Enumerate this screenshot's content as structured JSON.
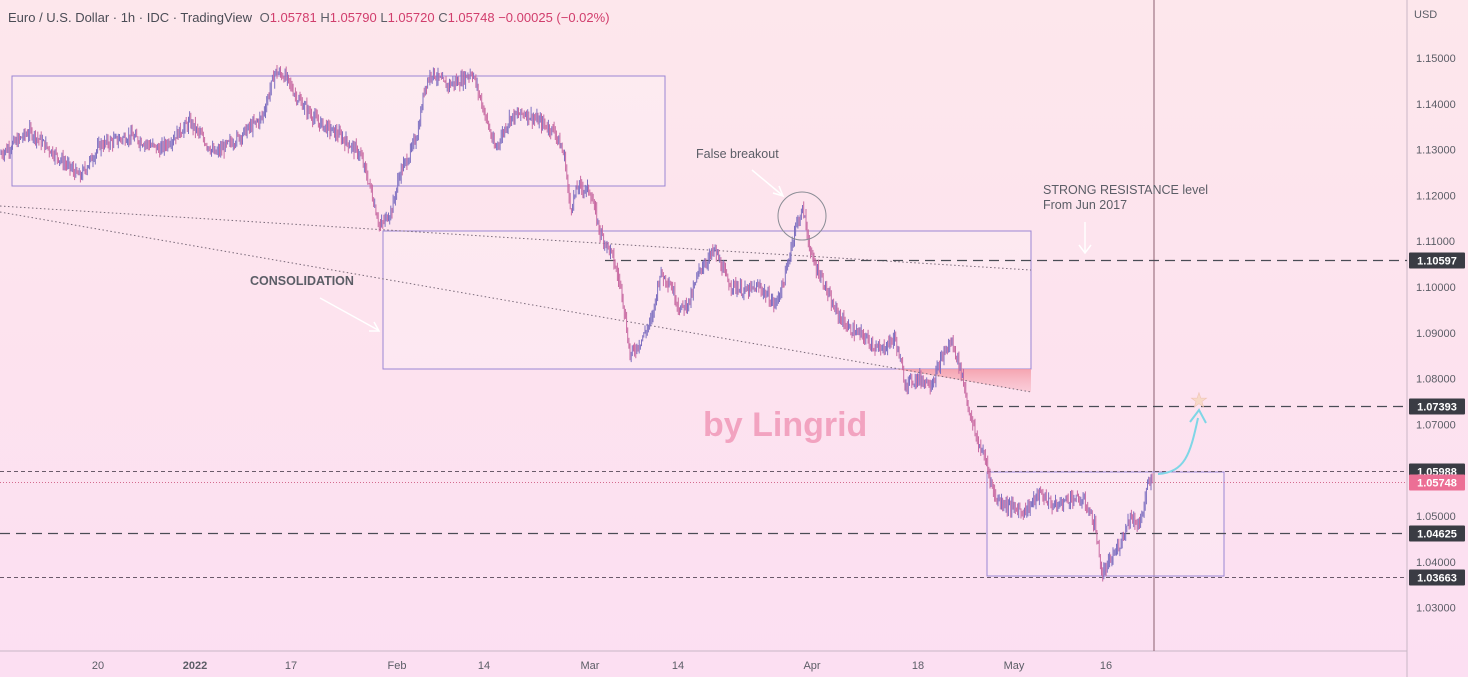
{
  "header": {
    "symbol": "Euro / U.S. Dollar · 1h · IDC · TradingView",
    "o_label": "O",
    "o": "1.05781",
    "h_label": "H",
    "h": "1.05790",
    "l_label": "L",
    "l": "1.05720",
    "c_label": "C",
    "c": "1.05748",
    "change": "−0.00025 (−0.02%)"
  },
  "currency": "USD",
  "watermark": "by Lingrid",
  "annotations": {
    "false_breakout": "False breakout",
    "consolidation": "CONSOLIDATION",
    "resistance_line1": "STRONG RESISTANCE level",
    "resistance_line2": "From Jun 2017"
  },
  "colors": {
    "candle": "#7e6fc0",
    "candle_alt": "#c86aa2",
    "box_stroke": "#9a86d4",
    "level_dash": "#4a4c55",
    "price_tag_dark": "#3a3c44",
    "price_tag_current": "#ec6f95",
    "trend_arrow": "#7fd6e6",
    "warning_zone": "#f4a3ad"
  },
  "chart_data": {
    "type": "candlestick",
    "title": "Euro / U.S. Dollar · 1h · IDC · TradingView",
    "ylabel": "USD",
    "ylim": [
      1.0195,
      1.1585
    ],
    "y_ticks": [
      1.15,
      1.14,
      1.13,
      1.12,
      1.11,
      1.1,
      1.09,
      1.08,
      1.07,
      1.05,
      1.04,
      1.03
    ],
    "y_tick_labels": [
      "1.15000",
      "1.14000",
      "1.13000",
      "1.12000",
      "1.11000",
      "1.10000",
      "1.09000",
      "1.08000",
      "1.07000",
      "1.05000",
      "1.04000",
      "1.03000"
    ],
    "x_tick_labels": [
      "20",
      "2022",
      "17",
      "Feb",
      "14",
      "Mar",
      "14",
      "Apr",
      "18",
      "May",
      "16"
    ],
    "x_tick_bold": [
      false,
      true,
      false,
      false,
      false,
      false,
      false,
      false,
      false,
      false,
      false
    ],
    "price_levels": [
      {
        "value": 1.10597,
        "label": "1.10597",
        "style": "dashed-long",
        "kind": "level"
      },
      {
        "value": 1.07393,
        "label": "1.07393",
        "style": "dashed-long",
        "kind": "level"
      },
      {
        "value": 1.05988,
        "label": "1.05988",
        "style": "dashed-short",
        "kind": "level"
      },
      {
        "value": 1.05748,
        "label": "1.05748",
        "style": "dotted",
        "kind": "current"
      },
      {
        "value": 1.04625,
        "label": "1.04625",
        "style": "dashed-long",
        "kind": "level"
      },
      {
        "value": 1.03663,
        "label": "1.03663",
        "style": "dashed-short",
        "kind": "level"
      }
    ],
    "path": [
      [
        0,
        1.129
      ],
      [
        30,
        1.134
      ],
      [
        60,
        1.128
      ],
      [
        80,
        1.124
      ],
      [
        100,
        1.131
      ],
      [
        130,
        1.133
      ],
      [
        160,
        1.13
      ],
      [
        190,
        1.136
      ],
      [
        215,
        1.129
      ],
      [
        240,
        1.133
      ],
      [
        262,
        1.137
      ],
      [
        275,
        1.147
      ],
      [
        285,
        1.146
      ],
      [
        298,
        1.141
      ],
      [
        318,
        1.136
      ],
      [
        340,
        1.133
      ],
      [
        360,
        1.129
      ],
      [
        370,
        1.122
      ],
      [
        380,
        1.113
      ],
      [
        392,
        1.117
      ],
      [
        400,
        1.125
      ],
      [
        410,
        1.129
      ],
      [
        418,
        1.134
      ],
      [
        425,
        1.144
      ],
      [
        432,
        1.147
      ],
      [
        445,
        1.144
      ],
      [
        460,
        1.145
      ],
      [
        472,
        1.147
      ],
      [
        482,
        1.14
      ],
      [
        495,
        1.13
      ],
      [
        510,
        1.137
      ],
      [
        525,
        1.138
      ],
      [
        540,
        1.136
      ],
      [
        555,
        1.134
      ],
      [
        565,
        1.128
      ],
      [
        570,
        1.117
      ],
      [
        578,
        1.122
      ],
      [
        590,
        1.121
      ],
      [
        600,
        1.112
      ],
      [
        612,
        1.107
      ],
      [
        622,
        1.099
      ],
      [
        630,
        1.085
      ],
      [
        640,
        1.088
      ],
      [
        652,
        1.093
      ],
      [
        660,
        1.103
      ],
      [
        670,
        1.101
      ],
      [
        680,
        1.095
      ],
      [
        690,
        1.097
      ],
      [
        700,
        1.104
      ],
      [
        715,
        1.108
      ],
      [
        728,
        1.101
      ],
      [
        745,
        1.099
      ],
      [
        760,
        1.1
      ],
      [
        775,
        1.096
      ],
      [
        785,
        1.102
      ],
      [
        795,
        1.113
      ],
      [
        803,
        1.117
      ],
      [
        812,
        1.106
      ],
      [
        822,
        1.102
      ],
      [
        832,
        1.096
      ],
      [
        848,
        1.091
      ],
      [
        865,
        1.089
      ],
      [
        880,
        1.086
      ],
      [
        895,
        1.089
      ],
      [
        905,
        1.079
      ],
      [
        918,
        1.08
      ],
      [
        932,
        1.079
      ],
      [
        945,
        1.086
      ],
      [
        952,
        1.088
      ],
      [
        962,
        1.081
      ],
      [
        970,
        1.072
      ],
      [
        978,
        1.066
      ],
      [
        986,
        1.062
      ],
      [
        995,
        1.054
      ],
      [
        1010,
        1.052
      ],
      [
        1025,
        1.051
      ],
      [
        1040,
        1.055
      ],
      [
        1055,
        1.052
      ],
      [
        1070,
        1.054
      ],
      [
        1085,
        1.053
      ],
      [
        1095,
        1.048
      ],
      [
        1102,
        1.037
      ],
      [
        1110,
        1.04
      ],
      [
        1120,
        1.044
      ],
      [
        1130,
        1.05
      ],
      [
        1140,
        1.048
      ],
      [
        1148,
        1.057
      ],
      [
        1153,
        1.0575
      ]
    ]
  }
}
